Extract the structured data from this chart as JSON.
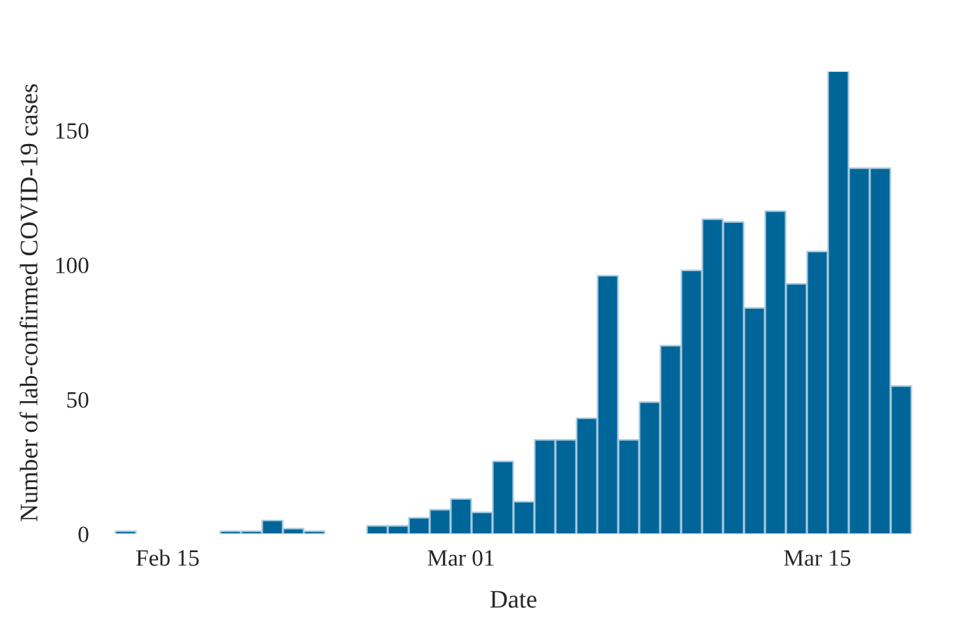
{
  "chart_data": {
    "type": "bar",
    "xlabel": "Date",
    "ylabel": "Number of lab-confirmed COVID-19 cases",
    "categories": [
      null,
      null,
      "Feb 15",
      null,
      null,
      null,
      null,
      null,
      null,
      null,
      null,
      null,
      null,
      null,
      null,
      null,
      "Mar 01",
      null,
      null,
      null,
      null,
      null,
      null,
      null,
      null,
      null,
      null,
      null,
      null,
      null,
      null,
      null,
      null,
      "Mar 15",
      null,
      null,
      null,
      null
    ],
    "values": [
      1,
      0,
      0,
      0,
      0,
      1,
      1,
      5,
      2,
      1,
      0,
      0,
      3,
      3,
      6,
      9,
      13,
      8,
      27,
      12,
      35,
      35,
      43,
      96,
      35,
      49,
      70,
      98,
      117,
      116,
      84,
      120,
      93,
      105,
      172,
      136,
      136,
      55
    ],
    "color": "#006699",
    "ylim": [
      0,
      172
    ],
    "yticks": [
      0,
      50,
      100,
      150
    ],
    "grid": false
  }
}
